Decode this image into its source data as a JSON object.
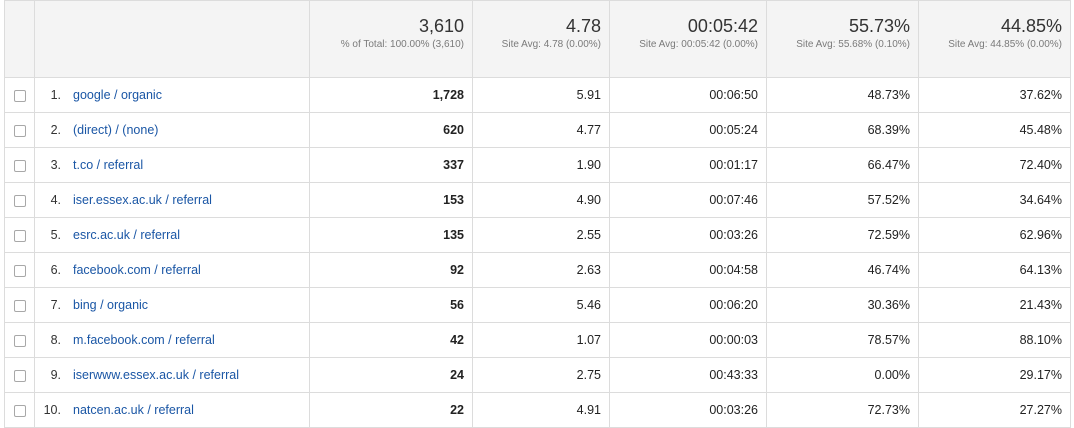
{
  "totals": [
    {
      "value": "3,610",
      "sub": "% of Total: 100.00% (3,610)"
    },
    {
      "value": "4.78",
      "sub": "Site Avg: 4.78 (0.00%)"
    },
    {
      "value": "00:05:42",
      "sub": "Site Avg: 00:05:42 (0.00%)"
    },
    {
      "value": "55.73%",
      "sub": "Site Avg: 55.68% (0.10%)"
    },
    {
      "value": "44.85%",
      "sub": "Site Avg: 44.85% (0.00%)"
    }
  ],
  "rows": [
    {
      "n": "1.",
      "source": "google / organic",
      "c1": "1,728",
      "c2": "5.91",
      "c3": "00:06:50",
      "c4": "48.73%",
      "c5": "37.62%"
    },
    {
      "n": "2.",
      "source": "(direct) / (none)",
      "c1": "620",
      "c2": "4.77",
      "c3": "00:05:24",
      "c4": "68.39%",
      "c5": "45.48%"
    },
    {
      "n": "3.",
      "source": "t.co / referral",
      "c1": "337",
      "c2": "1.90",
      "c3": "00:01:17",
      "c4": "66.47%",
      "c5": "72.40%"
    },
    {
      "n": "4.",
      "source": "iser.essex.ac.uk / referral",
      "c1": "153",
      "c2": "4.90",
      "c3": "00:07:46",
      "c4": "57.52%",
      "c5": "34.64%"
    },
    {
      "n": "5.",
      "source": "esrc.ac.uk / referral",
      "c1": "135",
      "c2": "2.55",
      "c3": "00:03:26",
      "c4": "72.59%",
      "c5": "62.96%"
    },
    {
      "n": "6.",
      "source": "facebook.com / referral",
      "c1": "92",
      "c2": "2.63",
      "c3": "00:04:58",
      "c4": "46.74%",
      "c5": "64.13%"
    },
    {
      "n": "7.",
      "source": "bing / organic",
      "c1": "56",
      "c2": "5.46",
      "c3": "00:06:20",
      "c4": "30.36%",
      "c5": "21.43%"
    },
    {
      "n": "8.",
      "source": "m.facebook.com / referral",
      "c1": "42",
      "c2": "1.07",
      "c3": "00:00:03",
      "c4": "78.57%",
      "c5": "88.10%"
    },
    {
      "n": "9.",
      "source": "iserwww.essex.ac.uk / referral",
      "c1": "24",
      "c2": "2.75",
      "c3": "00:43:33",
      "c4": "0.00%",
      "c5": "29.17%"
    },
    {
      "n": "10.",
      "source": "natcen.ac.uk / referral",
      "c1": "22",
      "c2": "4.91",
      "c3": "00:03:26",
      "c4": "72.73%",
      "c5": "27.27%"
    }
  ]
}
